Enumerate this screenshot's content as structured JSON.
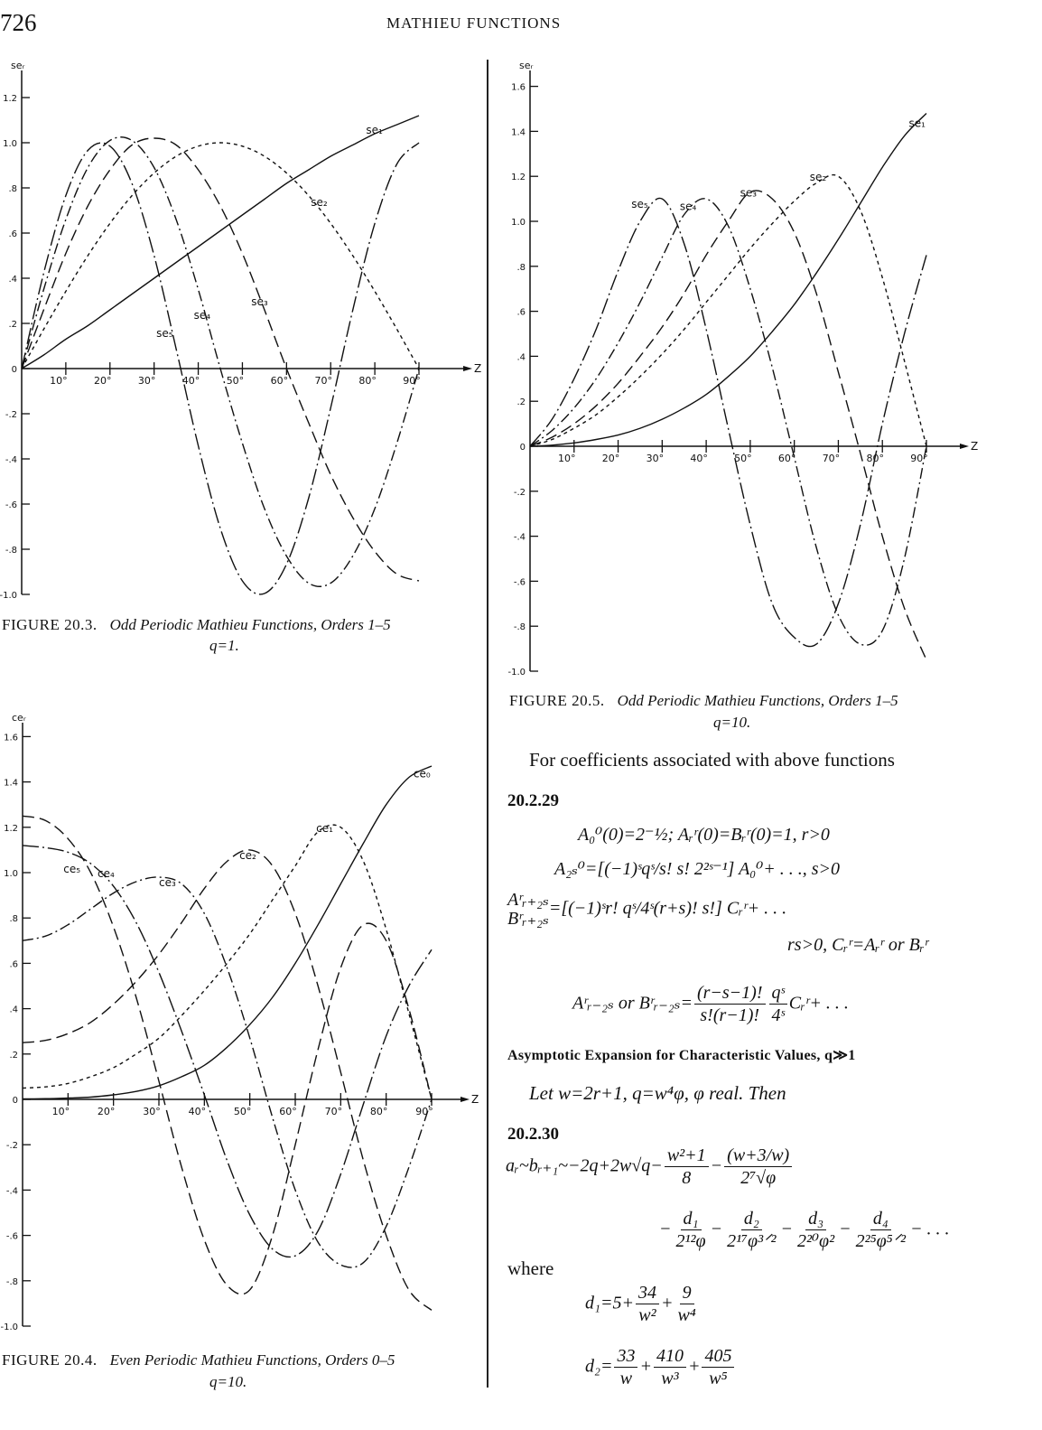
{
  "header": {
    "page_number": "726",
    "running_title": "MATHIEU FUNCTIONS"
  },
  "chart_data": [
    {
      "type": "line",
      "figure_label": "FIGURE 20.3.",
      "title": "Odd Periodic Mathieu Functions, Orders 1–5",
      "subtitle": "q=1.",
      "ylabel": "seᵣ",
      "xlabel": "Z",
      "xlim": [
        0,
        90
      ],
      "ylim": [
        -1.0,
        1.2
      ],
      "x_ticks": [
        10,
        20,
        30,
        40,
        50,
        60,
        70,
        80,
        90
      ],
      "x_tick_labels": [
        "10°",
        "20°",
        "30°",
        "40°",
        "50°",
        "60°",
        "70°",
        "80°",
        "90°"
      ],
      "y_ticks": [
        1.2,
        1.0,
        0.8,
        0.6,
        0.4,
        0.2,
        0,
        -0.2,
        -0.4,
        -0.6,
        -0.8,
        -1.0
      ],
      "y_tick_labels": [
        "1.2",
        "1.0",
        ".8",
        ".6",
        ".4",
        ".2",
        "0",
        "-.2",
        "-.4",
        "-.6",
        "-.8",
        "-1.0"
      ],
      "grid": false,
      "x": [
        0,
        5,
        10,
        15,
        20,
        25,
        30,
        35,
        40,
        45,
        50,
        55,
        60,
        65,
        70,
        75,
        80,
        85,
        90
      ],
      "series": [
        {
          "name": "se₁",
          "style": "solid",
          "label_at": [
            78,
            1.04
          ],
          "values": [
            0,
            0.06,
            0.13,
            0.19,
            0.26,
            0.33,
            0.4,
            0.47,
            0.54,
            0.61,
            0.68,
            0.75,
            0.82,
            0.88,
            0.94,
            0.99,
            1.04,
            1.08,
            1.12
          ]
        },
        {
          "name": "se₂",
          "style": "short-dash",
          "label_at": [
            65.5,
            0.72
          ],
          "values": [
            0,
            0.174,
            0.342,
            0.5,
            0.643,
            0.766,
            0.866,
            0.94,
            0.985,
            1.0,
            0.985,
            0.94,
            0.866,
            0.766,
            0.643,
            0.5,
            0.342,
            0.174,
            0
          ]
        },
        {
          "name": "se₃",
          "style": "long-dash",
          "label_at": [
            52,
            0.28
          ],
          "values": [
            0,
            0.26,
            0.51,
            0.72,
            0.88,
            0.99,
            1.02,
            0.99,
            0.88,
            0.72,
            0.51,
            0.26,
            0,
            -0.24,
            -0.47,
            -0.66,
            -0.81,
            -0.91,
            -0.94
          ]
        },
        {
          "name": "se₄",
          "style": "dash-dot",
          "label_at": [
            39,
            0.22
          ],
          "values": [
            0,
            0.35,
            0.66,
            0.89,
            1.01,
            1.01,
            0.89,
            0.66,
            0.35,
            0,
            -0.33,
            -0.62,
            -0.83,
            -0.95,
            -0.95,
            -0.83,
            -0.62,
            -0.33,
            0
          ]
        },
        {
          "name": "se₅",
          "style": "long-dash-dot",
          "label_at": [
            30.5,
            0.14
          ],
          "values": [
            0,
            0.423,
            0.766,
            0.966,
            0.985,
            0.819,
            0.5,
            0.087,
            -0.342,
            -0.707,
            -0.94,
            -0.996,
            -0.866,
            -0.574,
            -0.174,
            0.259,
            0.643,
            0.906,
            1.0
          ]
        }
      ]
    },
    {
      "type": "line",
      "figure_label": "FIGURE 20.5.",
      "title": "Odd Periodic Mathieu Functions, Orders 1–5",
      "subtitle": "q=10.",
      "ylabel": "seᵣ",
      "xlabel": "Z",
      "xlim": [
        0,
        90
      ],
      "ylim": [
        -1.0,
        1.6
      ],
      "x_ticks": [
        10,
        20,
        30,
        40,
        50,
        60,
        70,
        80,
        90
      ],
      "x_tick_labels": [
        "10°",
        "20°",
        "30°",
        "40°",
        "50°",
        "60°",
        "70°",
        "80°",
        "90°"
      ],
      "y_ticks": [
        1.6,
        1.4,
        1.2,
        1.0,
        0.8,
        0.6,
        0.4,
        0.2,
        0,
        -0.2,
        -0.4,
        -0.6,
        -0.8,
        -1.0
      ],
      "y_tick_labels": [
        "1.6",
        "1.4",
        "1.2",
        "1.0",
        ".8",
        ".6",
        ".4",
        ".2",
        "0",
        "-.2",
        "-.4",
        "-.6",
        "-.8",
        "-1.0"
      ],
      "grid": false,
      "x": [
        0,
        5,
        10,
        15,
        20,
        25,
        30,
        35,
        40,
        45,
        50,
        55,
        60,
        65,
        70,
        75,
        80,
        85,
        90
      ],
      "series": [
        {
          "name": "se₁",
          "style": "solid",
          "label_at": [
            86,
            1.42
          ],
          "values": [
            0,
            0.005,
            0.015,
            0.03,
            0.05,
            0.08,
            0.12,
            0.17,
            0.23,
            0.31,
            0.4,
            0.51,
            0.63,
            0.77,
            0.92,
            1.08,
            1.24,
            1.38,
            1.48
          ]
        },
        {
          "name": "se₂",
          "style": "short-dash",
          "label_at": [
            63.5,
            1.18
          ],
          "values": [
            0,
            0.03,
            0.08,
            0.14,
            0.22,
            0.31,
            0.41,
            0.52,
            0.64,
            0.76,
            0.88,
            0.99,
            1.09,
            1.17,
            1.2,
            1.05,
            0.75,
            0.38,
            0
          ]
        },
        {
          "name": "se₃",
          "style": "long-dash",
          "label_at": [
            47.7,
            1.11
          ],
          "values": [
            0,
            0.04,
            0.1,
            0.18,
            0.28,
            0.4,
            0.53,
            0.68,
            0.85,
            1.0,
            1.13,
            1.1,
            0.95,
            0.68,
            0.33,
            -0.03,
            -0.4,
            -0.72,
            -0.95
          ]
        },
        {
          "name": "se₄",
          "style": "dash-dot",
          "label_at": [
            34,
            1.05
          ],
          "values": [
            0,
            0.07,
            0.17,
            0.3,
            0.46,
            0.64,
            0.84,
            1.03,
            1.1,
            0.98,
            0.7,
            0.35,
            -0.05,
            -0.45,
            -0.75,
            -0.88,
            -0.82,
            -0.5,
            0
          ]
        },
        {
          "name": "se₅",
          "style": "long-dash-dot",
          "label_at": [
            23,
            1.06
          ],
          "values": [
            0,
            0.12,
            0.3,
            0.52,
            0.78,
            1.0,
            1.1,
            0.9,
            0.52,
            0.08,
            -0.35,
            -0.7,
            -0.85,
            -0.88,
            -0.7,
            -0.35,
            0.1,
            0.5,
            0.85
          ]
        }
      ]
    },
    {
      "type": "line",
      "figure_label": "FIGURE 20.4.",
      "title": "Even Periodic Mathieu Functions, Orders 0–5",
      "subtitle": "q=10.",
      "ylabel": "ceᵣ",
      "xlabel": "Z",
      "xlim": [
        0,
        90
      ],
      "ylim": [
        -1.0,
        1.6
      ],
      "x_ticks": [
        10,
        20,
        30,
        40,
        50,
        60,
        70,
        80,
        90
      ],
      "x_tick_labels": [
        "10°",
        "20°",
        "30°",
        "40°",
        "50°",
        "60°",
        "70°",
        "80°",
        "90°"
      ],
      "y_ticks": [
        1.6,
        1.4,
        1.2,
        1.0,
        0.8,
        0.6,
        0.4,
        0.2,
        0,
        -0.2,
        -0.4,
        -0.6,
        -0.8,
        -1.0
      ],
      "y_tick_labels": [
        "1.6",
        "1.4",
        "1.2",
        "1.0",
        ".8",
        ".6",
        ".4",
        ".2",
        "0",
        "-.2",
        "-.4",
        "-.6",
        "-.8",
        "-1.0"
      ],
      "grid": false,
      "x": [
        0,
        5,
        10,
        15,
        20,
        25,
        30,
        35,
        40,
        45,
        50,
        55,
        60,
        65,
        70,
        75,
        80,
        85,
        90
      ],
      "series": [
        {
          "name": "ce₀",
          "style": "solid",
          "label_at": [
            86,
            1.42
          ],
          "values": [
            0.002,
            0.003,
            0.006,
            0.01,
            0.02,
            0.035,
            0.06,
            0.1,
            0.15,
            0.23,
            0.33,
            0.45,
            0.6,
            0.77,
            0.95,
            1.13,
            1.3,
            1.42,
            1.47
          ]
        },
        {
          "name": "ce₁",
          "style": "short-dash",
          "label_at": [
            64.6,
            1.18
          ],
          "values": [
            0.05,
            0.055,
            0.07,
            0.1,
            0.14,
            0.2,
            0.27,
            0.37,
            0.48,
            0.6,
            0.73,
            0.88,
            1.03,
            1.18,
            1.2,
            1.05,
            0.75,
            0.38,
            0
          ]
        },
        {
          "name": "ce₂",
          "style": "long-dash",
          "label_at": [
            47.7,
            1.06
          ],
          "values": [
            0.25,
            0.26,
            0.29,
            0.34,
            0.42,
            0.52,
            0.64,
            0.78,
            0.93,
            1.05,
            1.1,
            1.03,
            0.82,
            0.5,
            0.12,
            -0.27,
            -0.6,
            -0.84,
            -0.93
          ]
        },
        {
          "name": "ce₃",
          "style": "dash-dot",
          "label_at": [
            30,
            0.94
          ],
          "values": [
            0.7,
            0.72,
            0.77,
            0.84,
            0.91,
            0.96,
            0.98,
            0.95,
            0.82,
            0.58,
            0.27,
            -0.08,
            -0.4,
            -0.63,
            -0.73,
            -0.72,
            -0.56,
            -0.3,
            0
          ]
        },
        {
          "name": "ce₄",
          "style": "long-dash-dot",
          "label_at": [
            16.5,
            0.98
          ],
          "values": [
            1.12,
            1.11,
            1.09,
            1.04,
            0.94,
            0.78,
            0.56,
            0.3,
            0.02,
            -0.27,
            -0.51,
            -0.66,
            -0.69,
            -0.58,
            -0.33,
            -0.02,
            0.28,
            0.5,
            0.66
          ]
        },
        {
          "name": "ce₅",
          "style": "long-dash",
          "label_at": [
            9,
            1.0
          ],
          "values": [
            1.25,
            1.23,
            1.15,
            1.0,
            0.76,
            0.45,
            0.08,
            -0.3,
            -0.62,
            -0.82,
            -0.84,
            -0.6,
            -0.2,
            0.22,
            0.58,
            0.77,
            0.7,
            0.4,
            0
          ]
        }
      ]
    }
  ],
  "text": {
    "intro": "For coefficients associated with above functions",
    "eq_2029": "20.2.29",
    "e1": "A₀⁰(0)=2⁻½; Aᵣʳ(0)=Bᵣʳ(0)=1, r>0",
    "e2": "A₂ₛ⁰=[(−1)ˢqˢ/s! s! 2²ˢ⁻¹] A₀⁰+ . . ., s>0",
    "e3_top": "Aʳᵣ₊₂ₛ",
    "e3_bot": "Bʳᵣ₊₂ₛ",
    "e3_rhs": "=[(−1)ˢr! qˢ/4ˢ(r+s)! s!] Cᵣʳ+ . . .",
    "e4": "rs>0, Cᵣʳ=Aᵣʳ or Bᵣʳ",
    "e5_lhs": "Aʳᵣ₋₂ₛ or Bʳᵣ₋₂ₛ=",
    "e5_num1": "(r−s−1)!",
    "e5_den1": "s!(r−1)!",
    "e5_num2": "qˢ",
    "e5_den2": "4ˢ",
    "e5_tail": "Cᵣʳ+ . . .",
    "heading": "Asymptotic Expansion for Characteristic Values, q≫1",
    "let": "Let w=2r+1, q=w⁴φ, φ real.   Then",
    "eq_2030": "20.2.30",
    "e6_lhs": "aᵣ~bᵣ₊₁~−2q+2w√q−",
    "e6_num1": "w²+1",
    "e6_den1": "8",
    "e6_minus": "−",
    "e6_num2": "(w+3/w)",
    "e6_den2": "2⁷√φ",
    "e7_minus": "−",
    "e7_n1": "d₁",
    "e7_d1": "2¹²φ",
    "e7_n2": "d₂",
    "e7_d2": "2¹⁷φ³ᐟ²",
    "e7_n3": "d₃",
    "e7_d3": "2²⁰φ²",
    "e7_n4": "d₄",
    "e7_d4": "2²⁵φ⁵ᐟ²",
    "e7_tail": "− . . .",
    "where": "where",
    "e8_lhs": "d₁=5+",
    "e8_n1": "34",
    "e8_d1": "w²",
    "plus": "+",
    "e8_n2": "9",
    "e8_d2": "w⁴",
    "e9_lhs": "d₂=",
    "e9_n1": "33",
    "e9_d1": "w",
    "e9_n2": "410",
    "e9_d2": "w³",
    "e9_n3": "405",
    "e9_d3": "w⁵"
  }
}
